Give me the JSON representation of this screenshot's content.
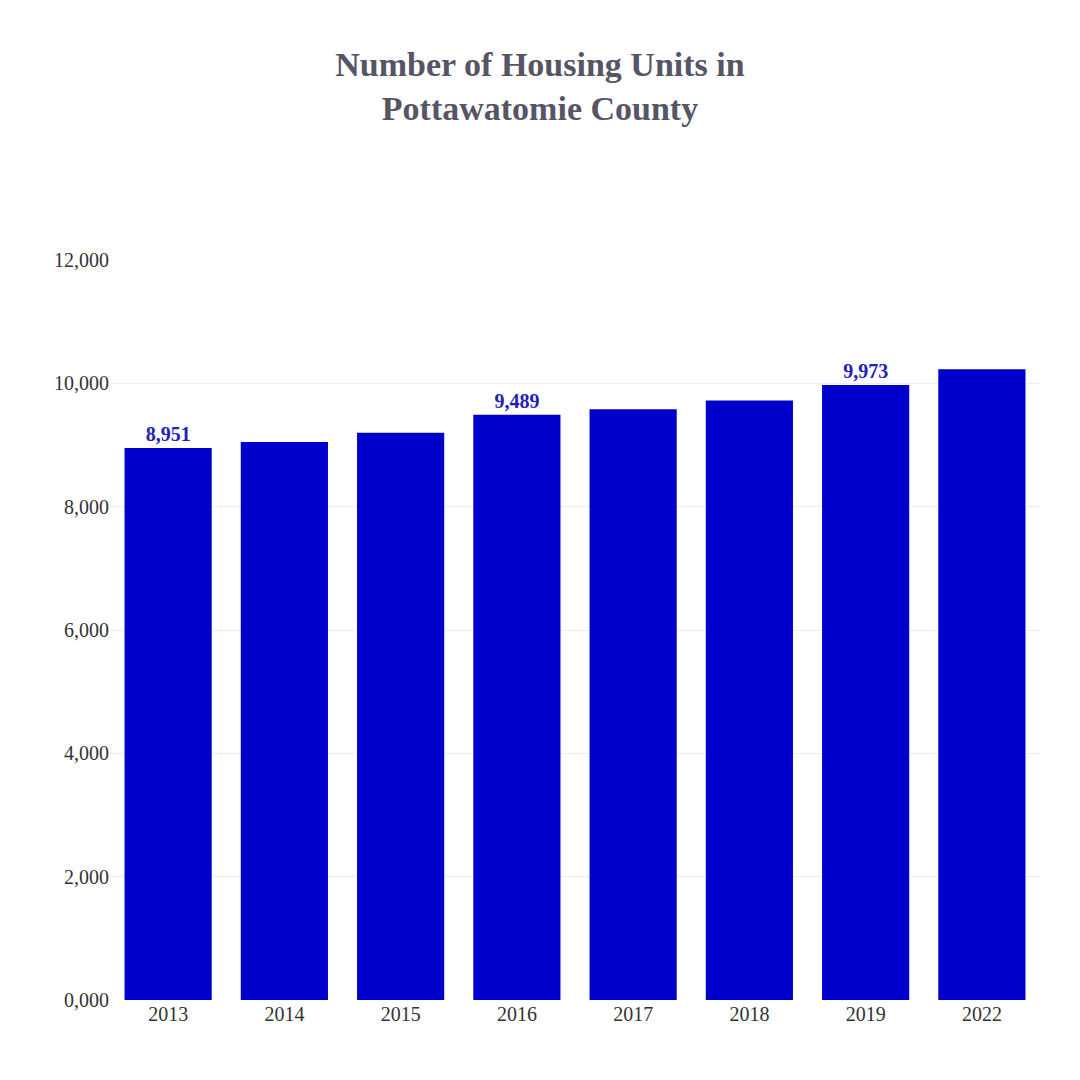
{
  "chart_data": {
    "type": "bar",
    "title": "Number of Housing Units in\nPottawatomie County",
    "categories": [
      "2013",
      "2014",
      "2015",
      "2016",
      "2017",
      "2018",
      "2019",
      "2022"
    ],
    "values": [
      8951,
      9050,
      9200,
      9489,
      9580,
      9720,
      9973,
      10230
    ],
    "value_labels": [
      "8,951",
      null,
      null,
      "9,489",
      null,
      null,
      "9,973",
      null
    ],
    "data_labels": true,
    "color": "#0000CC",
    "ylim": [
      0,
      12000
    ],
    "yticks": [
      {
        "value": 0,
        "label": "0,000"
      },
      {
        "value": 2000,
        "label": "2,000"
      },
      {
        "value": 4000,
        "label": "4,000"
      },
      {
        "value": 6000,
        "label": "6,000"
      },
      {
        "value": 8000,
        "label": "8,000"
      },
      {
        "value": 10000,
        "label": "10,000"
      },
      {
        "value": 12000,
        "label": "12,000"
      }
    ],
    "grid": true
  }
}
